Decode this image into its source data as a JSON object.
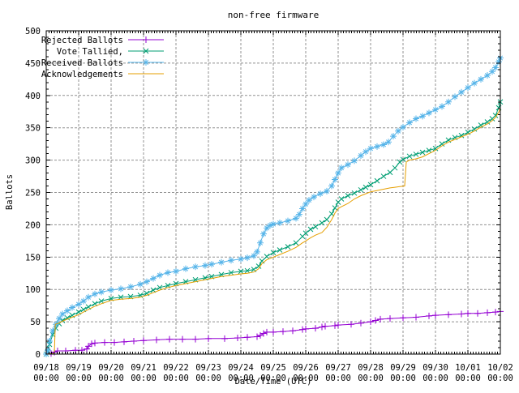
{
  "chart_data": {
    "type": "line",
    "title": "non-free firmware",
    "xlabel": "Date/Time (UTC)",
    "ylabel": "Ballots",
    "ylim": [
      0,
      500
    ],
    "ytick_step": 50,
    "ytick_labels": [
      "0",
      "50",
      "100",
      "150",
      "200",
      "250",
      "300",
      "350",
      "400",
      "450",
      "500"
    ],
    "x_range_days": [
      0,
      14
    ],
    "x_tick_labels_line1": [
      "09/18",
      "09/19",
      "09/20",
      "09/21",
      "09/22",
      "09/23",
      "09/24",
      "09/25",
      "09/26",
      "09/27",
      "09/28",
      "09/29",
      "09/30",
      "10/01",
      "10/02"
    ],
    "x_tick_labels_line2": "00:00",
    "grid": true,
    "grid_color": "#909090",
    "frame_color": "#000000",
    "background_color": "#ffffff",
    "legend_position": "top-left-inside",
    "series": [
      {
        "name": "Rejected Ballots",
        "key": "rejected-ballots",
        "color": "#9400d3",
        "marker": "plus",
        "points": [
          [
            0,
            0
          ],
          [
            0.15,
            1
          ],
          [
            0.25,
            3
          ],
          [
            0.35,
            5
          ],
          [
            0.6,
            5
          ],
          [
            0.9,
            6
          ],
          [
            1.1,
            6
          ],
          [
            1.25,
            8
          ],
          [
            1.3,
            12
          ],
          [
            1.4,
            16
          ],
          [
            1.5,
            17
          ],
          [
            1.8,
            18
          ],
          [
            2.1,
            18
          ],
          [
            2.4,
            19
          ],
          [
            2.7,
            20
          ],
          [
            3,
            21
          ],
          [
            3.4,
            22
          ],
          [
            3.8,
            23
          ],
          [
            4.2,
            23
          ],
          [
            4.6,
            23
          ],
          [
            5,
            24
          ],
          [
            5.5,
            24
          ],
          [
            5.9,
            25
          ],
          [
            6.2,
            26
          ],
          [
            6.5,
            27
          ],
          [
            6.6,
            29
          ],
          [
            6.7,
            32
          ],
          [
            6.8,
            34
          ],
          [
            7,
            34
          ],
          [
            7.3,
            35
          ],
          [
            7.6,
            36
          ],
          [
            7.9,
            38
          ],
          [
            8,
            39
          ],
          [
            8.3,
            40
          ],
          [
            8.5,
            42
          ],
          [
            8.6,
            43
          ],
          [
            8.9,
            44
          ],
          [
            9,
            45
          ],
          [
            9.4,
            46
          ],
          [
            9.7,
            48
          ],
          [
            10,
            50
          ],
          [
            10.15,
            52
          ],
          [
            10.3,
            54
          ],
          [
            10.6,
            55
          ],
          [
            11,
            56
          ],
          [
            11.4,
            57
          ],
          [
            11.8,
            59
          ],
          [
            12,
            60
          ],
          [
            12.4,
            61
          ],
          [
            12.8,
            62
          ],
          [
            13,
            63
          ],
          [
            13.3,
            63
          ],
          [
            13.6,
            64
          ],
          [
            13.85,
            65
          ],
          [
            14,
            66
          ]
        ]
      },
      {
        "name": "Vote Tallied,",
        "key": "vote-tallied",
        "color": "#009e73",
        "marker": "cross",
        "points": [
          [
            0,
            0
          ],
          [
            0.05,
            4
          ],
          [
            0.1,
            15
          ],
          [
            0.2,
            30
          ],
          [
            0.3,
            40
          ],
          [
            0.4,
            47
          ],
          [
            0.5,
            52
          ],
          [
            0.65,
            56
          ],
          [
            0.8,
            60
          ],
          [
            1,
            65
          ],
          [
            1.15,
            69
          ],
          [
            1.3,
            73
          ],
          [
            1.5,
            78
          ],
          [
            1.7,
            82
          ],
          [
            2,
            86
          ],
          [
            2.3,
            88
          ],
          [
            2.6,
            89
          ],
          [
            2.9,
            91
          ],
          [
            3.1,
            94
          ],
          [
            3.3,
            99
          ],
          [
            3.5,
            103
          ],
          [
            3.75,
            106
          ],
          [
            4,
            109
          ],
          [
            4.3,
            112
          ],
          [
            4.6,
            115
          ],
          [
            4.9,
            118
          ],
          [
            5.1,
            120
          ],
          [
            5.4,
            123
          ],
          [
            5.7,
            126
          ],
          [
            6,
            128
          ],
          [
            6.2,
            129
          ],
          [
            6.4,
            131
          ],
          [
            6.55,
            136
          ],
          [
            6.65,
            144
          ],
          [
            6.8,
            151
          ],
          [
            7,
            157
          ],
          [
            7.2,
            161
          ],
          [
            7.45,
            166
          ],
          [
            7.7,
            172
          ],
          [
            7.9,
            182
          ],
          [
            8,
            187
          ],
          [
            8.15,
            193
          ],
          [
            8.3,
            197
          ],
          [
            8.5,
            203
          ],
          [
            8.65,
            208
          ],
          [
            8.8,
            217
          ],
          [
            8.9,
            226
          ],
          [
            9,
            235
          ],
          [
            9.1,
            240
          ],
          [
            9.3,
            245
          ],
          [
            9.5,
            249
          ],
          [
            9.7,
            254
          ],
          [
            9.85,
            258
          ],
          [
            10,
            262
          ],
          [
            10.2,
            268
          ],
          [
            10.4,
            275
          ],
          [
            10.6,
            281
          ],
          [
            10.75,
            288
          ],
          [
            10.9,
            297
          ],
          [
            11,
            301
          ],
          [
            11.2,
            306
          ],
          [
            11.4,
            309
          ],
          [
            11.6,
            312
          ],
          [
            11.8,
            315
          ],
          [
            12,
            318
          ],
          [
            12.2,
            325
          ],
          [
            12.4,
            331
          ],
          [
            12.6,
            335
          ],
          [
            12.8,
            338
          ],
          [
            13,
            343
          ],
          [
            13.2,
            348
          ],
          [
            13.4,
            354
          ],
          [
            13.6,
            359
          ],
          [
            13.75,
            364
          ],
          [
            13.85,
            369
          ],
          [
            13.95,
            381
          ],
          [
            14,
            390
          ]
        ]
      },
      {
        "name": "Received Ballots",
        "key": "received-ballots",
        "color": "#56b4e9",
        "marker": "star",
        "points": [
          [
            0,
            0
          ],
          [
            0.05,
            6
          ],
          [
            0.1,
            20
          ],
          [
            0.2,
            36
          ],
          [
            0.3,
            46
          ],
          [
            0.4,
            55
          ],
          [
            0.5,
            62
          ],
          [
            0.65,
            67
          ],
          [
            0.8,
            72
          ],
          [
            1,
            77
          ],
          [
            1.15,
            82
          ],
          [
            1.3,
            88
          ],
          [
            1.5,
            93
          ],
          [
            1.7,
            96
          ],
          [
            2,
            99
          ],
          [
            2.3,
            101
          ],
          [
            2.6,
            104
          ],
          [
            2.9,
            108
          ],
          [
            3.1,
            112
          ],
          [
            3.3,
            117
          ],
          [
            3.5,
            122
          ],
          [
            3.75,
            126
          ],
          [
            4,
            128
          ],
          [
            4.3,
            132
          ],
          [
            4.6,
            135
          ],
          [
            4.9,
            137
          ],
          [
            5.1,
            139
          ],
          [
            5.4,
            142
          ],
          [
            5.7,
            145
          ],
          [
            6,
            147
          ],
          [
            6.2,
            149
          ],
          [
            6.4,
            152
          ],
          [
            6.5,
            158
          ],
          [
            6.6,
            172
          ],
          [
            6.7,
            186
          ],
          [
            6.8,
            195
          ],
          [
            6.9,
            199
          ],
          [
            7,
            201
          ],
          [
            7.2,
            203
          ],
          [
            7.45,
            206
          ],
          [
            7.7,
            210
          ],
          [
            7.8,
            216
          ],
          [
            7.9,
            225
          ],
          [
            8,
            232
          ],
          [
            8.1,
            238
          ],
          [
            8.25,
            243
          ],
          [
            8.45,
            248
          ],
          [
            8.65,
            252
          ],
          [
            8.8,
            260
          ],
          [
            8.9,
            270
          ],
          [
            9,
            280
          ],
          [
            9.1,
            288
          ],
          [
            9.3,
            293
          ],
          [
            9.5,
            299
          ],
          [
            9.7,
            307
          ],
          [
            9.85,
            313
          ],
          [
            10,
            318
          ],
          [
            10.2,
            321
          ],
          [
            10.4,
            324
          ],
          [
            10.55,
            328
          ],
          [
            10.7,
            337
          ],
          [
            10.85,
            345
          ],
          [
            11,
            351
          ],
          [
            11.2,
            358
          ],
          [
            11.4,
            364
          ],
          [
            11.6,
            368
          ],
          [
            11.8,
            373
          ],
          [
            12,
            378
          ],
          [
            12.2,
            383
          ],
          [
            12.4,
            390
          ],
          [
            12.6,
            398
          ],
          [
            12.8,
            405
          ],
          [
            13,
            412
          ],
          [
            13.2,
            419
          ],
          [
            13.4,
            425
          ],
          [
            13.6,
            431
          ],
          [
            13.75,
            437
          ],
          [
            13.85,
            443
          ],
          [
            13.95,
            452
          ],
          [
            14,
            458
          ]
        ]
      },
      {
        "name": "Acknowledgements",
        "key": "acknowledgements",
        "color": "#e69f00",
        "marker": "none",
        "points": [
          [
            0,
            0
          ],
          [
            0.25,
            1
          ],
          [
            0.28,
            46
          ],
          [
            0.4,
            48
          ],
          [
            0.5,
            51
          ],
          [
            0.65,
            54
          ],
          [
            0.8,
            57
          ],
          [
            1,
            61
          ],
          [
            1.15,
            65
          ],
          [
            1.3,
            69
          ],
          [
            1.5,
            74
          ],
          [
            1.7,
            78
          ],
          [
            2,
            83
          ],
          [
            2.3,
            85
          ],
          [
            2.6,
            86
          ],
          [
            2.9,
            88
          ],
          [
            3.1,
            91
          ],
          [
            3.3,
            95
          ],
          [
            3.5,
            99
          ],
          [
            3.75,
            103
          ],
          [
            4,
            106
          ],
          [
            4.3,
            109
          ],
          [
            4.6,
            112
          ],
          [
            4.9,
            115
          ],
          [
            5.1,
            117
          ],
          [
            5.4,
            120
          ],
          [
            5.7,
            122
          ],
          [
            6,
            124
          ],
          [
            6.2,
            125
          ],
          [
            6.4,
            127
          ],
          [
            6.55,
            132
          ],
          [
            6.65,
            140
          ],
          [
            6.8,
            146
          ],
          [
            7,
            150
          ],
          [
            7.2,
            154
          ],
          [
            7.45,
            159
          ],
          [
            7.7,
            165
          ],
          [
            7.9,
            172
          ],
          [
            8,
            175
          ],
          [
            8.15,
            180
          ],
          [
            8.3,
            184
          ],
          [
            8.5,
            188
          ],
          [
            8.65,
            196
          ],
          [
            8.8,
            208
          ],
          [
            8.9,
            218
          ],
          [
            9,
            225
          ],
          [
            9.1,
            228
          ],
          [
            9.3,
            233
          ],
          [
            9.5,
            240
          ],
          [
            9.7,
            245
          ],
          [
            9.85,
            248
          ],
          [
            10,
            251
          ],
          [
            10.2,
            253
          ],
          [
            10.4,
            255
          ],
          [
            10.6,
            257
          ],
          [
            10.75,
            258
          ],
          [
            10.9,
            259
          ],
          [
            11.05,
            260
          ],
          [
            11.1,
            297
          ],
          [
            11.2,
            300
          ],
          [
            11.4,
            302
          ],
          [
            11.6,
            305
          ],
          [
            11.8,
            310
          ],
          [
            12,
            315
          ],
          [
            12.2,
            322
          ],
          [
            12.4,
            328
          ],
          [
            12.6,
            332
          ],
          [
            12.8,
            336
          ],
          [
            13,
            340
          ],
          [
            13.2,
            345
          ],
          [
            13.4,
            351
          ],
          [
            13.6,
            356
          ],
          [
            13.75,
            361
          ],
          [
            13.85,
            366
          ],
          [
            13.95,
            374
          ],
          [
            14,
            380
          ]
        ]
      }
    ]
  }
}
